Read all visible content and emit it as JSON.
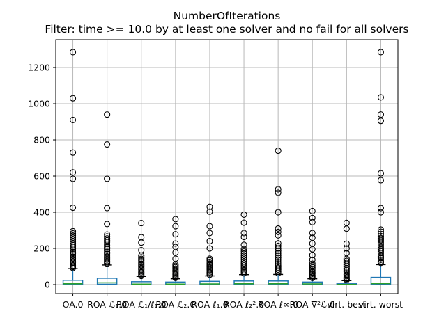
{
  "chart_data": {
    "type": "boxplot",
    "title": "NumberOfIterations",
    "subtitle": "Filter: time >= 10.0 by at least one solver and no fail for all solvers",
    "ylabel": "",
    "xlabel": "",
    "ylim": [
      -50,
      1354
    ],
    "yticks": [
      0,
      200,
      400,
      600,
      800,
      1000,
      1200
    ],
    "grid": true,
    "legend": "none",
    "colors": {
      "box": "#1f77b4",
      "whisker": "#1f77b4",
      "median": "#2ca02c",
      "cap": "#000000",
      "flier": "#000000",
      "grid": "#b8b8b8",
      "spine": "#000000",
      "background": "#ffffff"
    },
    "series": [
      {
        "label": "OA.0",
        "q1": 2,
        "median": 5,
        "q3": 24,
        "whisker_low": 0,
        "whisker_high": 88,
        "outliers": [
          1285,
          1030,
          910,
          730,
          620,
          585,
          425,
          295,
          283,
          271,
          260,
          249,
          238,
          228,
          218,
          208,
          198,
          189,
          180,
          171,
          162,
          153,
          145,
          137,
          129,
          121,
          113,
          105,
          98,
          92
        ]
      },
      {
        "label": "ROA-ℒ₁.0",
        "q1": 2,
        "median": 10,
        "q3": 35,
        "whisker_low": 0,
        "whisker_high": 108,
        "outliers": [
          940,
          775,
          585,
          423,
          335,
          277,
          266,
          255,
          245,
          235,
          225,
          215,
          206,
          197,
          188,
          179,
          170,
          162,
          154,
          146,
          138,
          130,
          123,
          116
        ]
      },
      {
        "label": "ROA-ℒ₁/ℓ₁.0",
        "q1": 1,
        "median": 3,
        "q3": 16,
        "whisker_low": 0,
        "whisker_high": 45,
        "outliers": [
          340,
          262,
          232,
          190,
          160,
          151,
          142,
          133,
          124,
          115,
          107,
          99,
          91,
          83,
          75,
          68,
          61,
          54,
          48
        ]
      },
      {
        "label": "ROA-ℒ₂.0",
        "q1": 1,
        "median": 3,
        "q3": 14,
        "whisker_low": 0,
        "whisker_high": 32,
        "outliers": [
          362,
          323,
          278,
          227,
          208,
          177,
          143,
          112,
          104,
          96,
          88,
          80,
          72,
          64,
          57,
          50,
          43,
          37
        ]
      },
      {
        "label": "ROA-ℓ₁.0",
        "q1": 1,
        "median": 4,
        "q3": 18,
        "whisker_low": 0,
        "whisker_high": 48,
        "outliers": [
          430,
          403,
          323,
          285,
          240,
          200,
          143,
          134,
          125,
          116,
          108,
          100,
          92,
          84,
          76,
          68,
          61,
          54
        ]
      },
      {
        "label": "ROA-ℓ₂².0",
        "q1": 1,
        "median": 5,
        "q3": 20,
        "whisker_low": 0,
        "whisker_high": 55,
        "outliers": [
          387,
          342,
          285,
          263,
          220,
          196,
          184,
          172,
          160,
          149,
          138,
          127,
          117,
          107,
          97,
          88,
          79,
          70,
          62
        ]
      },
      {
        "label": "ROA-ℓ∞.0",
        "q1": 1,
        "median": 5,
        "q3": 20,
        "whisker_low": 0,
        "whisker_high": 56,
        "outliers": [
          740,
          527,
          508,
          400,
          310,
          291,
          272,
          228,
          214,
          200,
          187,
          174,
          161,
          149,
          137,
          125,
          114,
          103,
          92,
          82,
          72,
          63
        ]
      },
      {
        "label": "ROA-∇²ℒ.0",
        "q1": 1,
        "median": 4,
        "q3": 14,
        "whisker_low": 0,
        "whisker_high": 32,
        "outliers": [
          406,
          368,
          345,
          285,
          259,
          227,
          195,
          163,
          137,
          115,
          105,
          95,
          86,
          77,
          68,
          60,
          52,
          44,
          37
        ]
      },
      {
        "label": "virt. best",
        "q1": 0,
        "median": 1,
        "q3": 7,
        "whisker_low": 0,
        "whisker_high": 22,
        "outliers": [
          341,
          309,
          226,
          200,
          174,
          142,
          131,
          120,
          110,
          100,
          90,
          81,
          72,
          63,
          55,
          47,
          39,
          32,
          26
        ]
      },
      {
        "label": "virt. worst",
        "q1": 3,
        "median": 6,
        "q3": 40,
        "whisker_low": 0,
        "whisker_high": 110,
        "outliers": [
          1285,
          1035,
          940,
          905,
          615,
          577,
          423,
          400,
          304,
          292,
          280,
          268,
          257,
          246,
          235,
          224,
          214,
          204,
          194,
          184,
          174,
          164,
          155,
          146,
          137,
          128,
          120
        ]
      }
    ]
  }
}
